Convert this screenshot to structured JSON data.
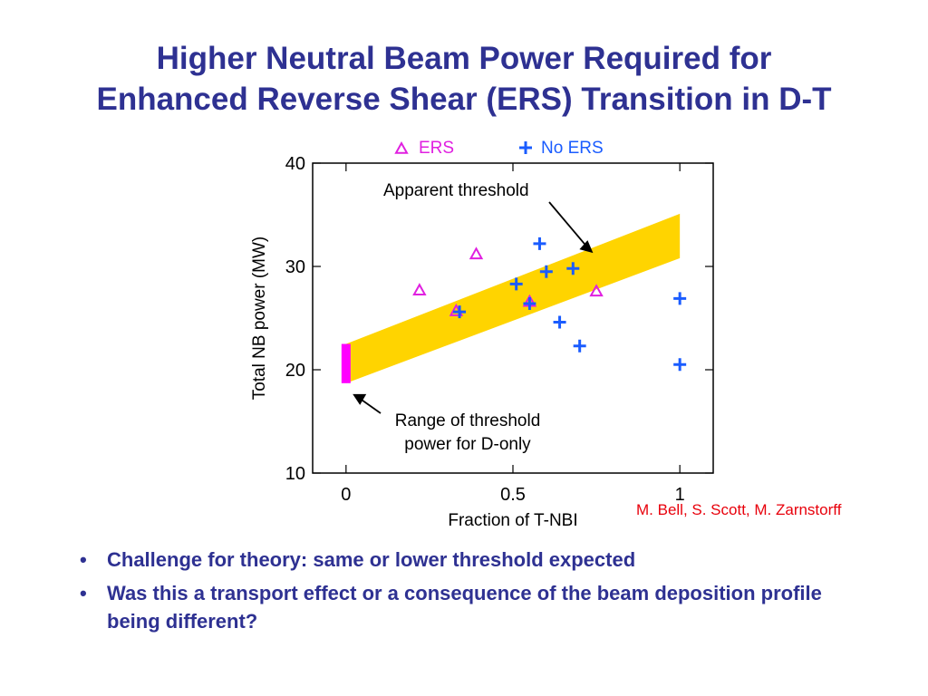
{
  "slide": {
    "title_line1": "Higher Neutral Beam Power Required for",
    "title_line2": "Enhanced Reverse Shear (ERS) Transition in D-T",
    "credit": "M. Bell, S. Scott, M. Zarnstorff",
    "bullets": [
      "Challenge for theory: same or lower threshold expected",
      "Was this a transport effect or a consequence of the beam deposition profile being different?"
    ],
    "bullet_marker": "•"
  },
  "chart_data": {
    "type": "scatter",
    "xlabel": "Fraction of T-NBI",
    "ylabel": "Total NB power (MW)",
    "xlim": [
      -0.1,
      1.1
    ],
    "ylim": [
      10,
      40
    ],
    "x_ticks": [
      {
        "value": 0,
        "label": "0"
      },
      {
        "value": 0.5,
        "label": "0.5"
      },
      {
        "value": 1,
        "label": "1"
      }
    ],
    "y_ticks": [
      {
        "value": 10,
        "label": "10"
      },
      {
        "value": 20,
        "label": "20"
      },
      {
        "value": 30,
        "label": "30"
      },
      {
        "value": 40,
        "label": "40"
      }
    ],
    "grid": false,
    "legend_position": "top",
    "series": [
      {
        "name": "ERS",
        "marker": "triangle",
        "color": "#e020e0",
        "points": [
          [
            0.22,
            27.7
          ],
          [
            0.33,
            25.7
          ],
          [
            0.39,
            31.2
          ],
          [
            0.55,
            26.6
          ],
          [
            0.75,
            27.6
          ]
        ]
      },
      {
        "name": "No ERS",
        "marker": "plus",
        "color": "#1a5cff",
        "points": [
          [
            0.34,
            25.6
          ],
          [
            0.51,
            28.3
          ],
          [
            0.55,
            26.4
          ],
          [
            0.58,
            32.2
          ],
          [
            0.6,
            29.5
          ],
          [
            0.64,
            24.6
          ],
          [
            0.68,
            29.8
          ],
          [
            0.7,
            22.3
          ],
          [
            1.0,
            26.9
          ],
          [
            1.0,
            20.5
          ]
        ]
      }
    ],
    "threshold_band": {
      "color": "#ffd400",
      "x": [
        0.0,
        1.0
      ],
      "lower": [
        18.7,
        30.8
      ],
      "upper": [
        22.5,
        35.1
      ]
    },
    "d_only_range": {
      "color": "#ff00ff",
      "x": 0.0,
      "y": [
        18.7,
        22.5
      ]
    },
    "annotations": [
      {
        "id": "apparent",
        "text": "Apparent threshold",
        "arrow_to": [
          0.74,
          31.3
        ]
      },
      {
        "id": "donly",
        "text_lines": [
          "Range of threshold",
          "power for D-only"
        ],
        "arrow_to": [
          0.02,
          19.4
        ]
      }
    ]
  }
}
